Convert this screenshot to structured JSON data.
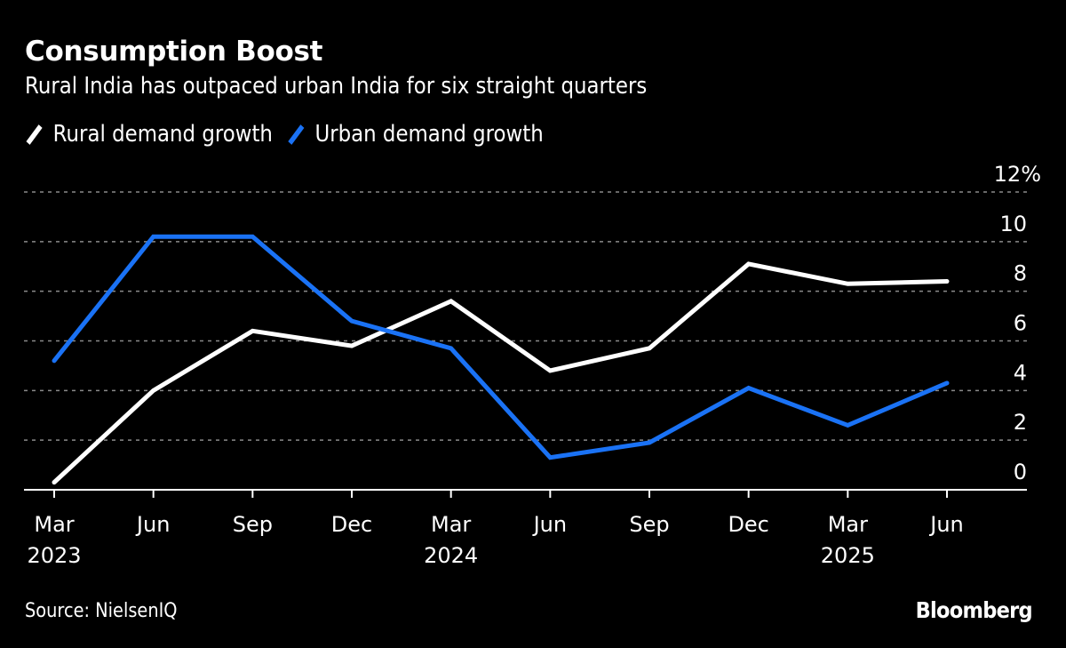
{
  "header": {
    "title": "Consumption Boost",
    "subtitle": "Rural India has outpaced urban India for six straight quarters"
  },
  "footer": {
    "source": "Source: NielsenIQ",
    "brand": "Bloomberg"
  },
  "colors": {
    "background": "#000000",
    "rural": "#ffffff",
    "urban": "#1a72f5",
    "grid": "#8a8a8a"
  },
  "chart_data": {
    "type": "line",
    "title": "Consumption Boost",
    "subtitle": "Rural India has outpaced urban India for six straight quarters",
    "xlabel": "",
    "ylabel": "",
    "x": [
      "Mar 2023",
      "Jun 2023",
      "Sep 2023",
      "Dec 2023",
      "Mar 2024",
      "Jun 2024",
      "Sep 2024",
      "Dec 2024",
      "Mar 2025",
      "Jun 2025"
    ],
    "x_tick_labels": [
      {
        "month": "Mar",
        "year": "2023"
      },
      {
        "month": "Jun",
        "year": ""
      },
      {
        "month": "Sep",
        "year": ""
      },
      {
        "month": "Dec",
        "year": ""
      },
      {
        "month": "Mar",
        "year": "2024"
      },
      {
        "month": "Jun",
        "year": ""
      },
      {
        "month": "Sep",
        "year": ""
      },
      {
        "month": "Dec",
        "year": ""
      },
      {
        "month": "Mar",
        "year": "2025"
      },
      {
        "month": "Jun",
        "year": ""
      }
    ],
    "series": [
      {
        "name": "Rural demand growth",
        "color": "#ffffff",
        "values": [
          0.3,
          4.0,
          6.4,
          5.8,
          7.6,
          4.8,
          5.7,
          9.1,
          8.3,
          8.4
        ]
      },
      {
        "name": "Urban demand growth",
        "color": "#1a72f5",
        "values": [
          5.2,
          10.2,
          10.2,
          6.8,
          5.7,
          1.3,
          1.9,
          4.1,
          2.6,
          4.3
        ]
      }
    ],
    "ylim": [
      0,
      12
    ],
    "y_ticks": [
      0,
      2,
      4,
      6,
      8,
      10,
      12
    ],
    "y_tick_labels": [
      "0",
      "2",
      "4",
      "6",
      "8",
      "10",
      "12%"
    ],
    "y_axis_side": "right",
    "grid": true,
    "legend_position": "top-left"
  }
}
